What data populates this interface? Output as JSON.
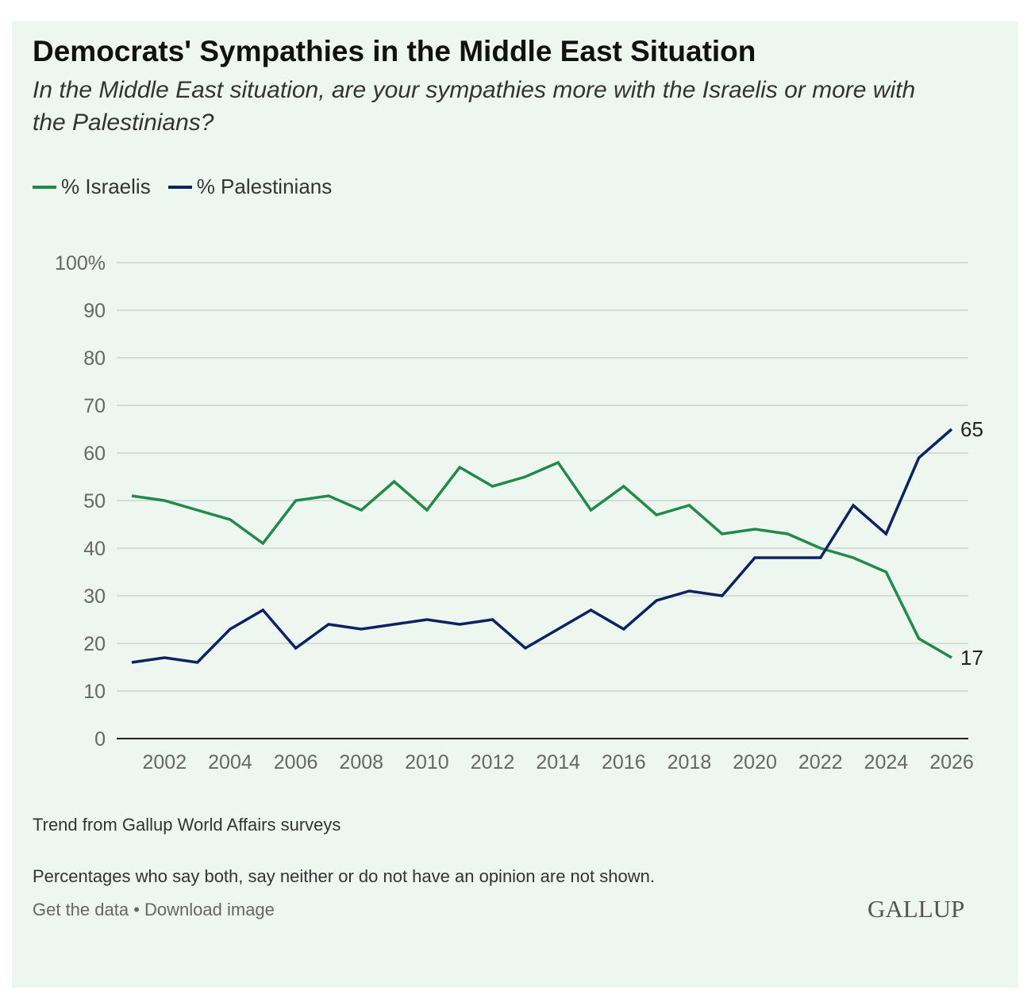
{
  "header": {
    "title": "Democrats' Sympathies in the Middle East Situation",
    "subtitle": "In the Middle East situation, are your sympathies more with the Israelis or more with the Palestinians?"
  },
  "notes": {
    "source": "Trend from Gallup World Affairs surveys",
    "caveat": "Percentages who say both, say neither or do not have an opinion are not shown."
  },
  "footer": {
    "get_data": "Get the data",
    "separator": " • ",
    "download": "Download image",
    "logo": "GALLUP"
  },
  "chart_data": {
    "type": "line",
    "title": "Democrats' Sympathies in the Middle East Situation",
    "xlabel": "",
    "ylabel": "",
    "ylim": [
      0,
      100
    ],
    "xlim": [
      2001,
      2026
    ],
    "yticks": [
      "0",
      "10",
      "20",
      "30",
      "40",
      "50",
      "60",
      "70",
      "80",
      "90",
      "100%"
    ],
    "xticks": [
      "2002",
      "2004",
      "2006",
      "2008",
      "2010",
      "2012",
      "2014",
      "2016",
      "2018",
      "2020",
      "2022",
      "2024",
      "2026"
    ],
    "grid": true,
    "legend_placement": "top-left",
    "x": [
      2001,
      2002,
      2003,
      2004,
      2005,
      2006,
      2007,
      2008,
      2009,
      2010,
      2011,
      2012,
      2013,
      2014,
      2015,
      2016,
      2017,
      2018,
      2019,
      2020,
      2021,
      2022,
      2023,
      2024,
      2025,
      2026
    ],
    "series": [
      {
        "name": "% Israelis",
        "color": "#218a4a",
        "end_label": "17",
        "values": [
          51,
          50,
          48,
          46,
          41,
          50,
          51,
          48,
          54,
          48,
          57,
          53,
          55,
          58,
          48,
          53,
          47,
          49,
          43,
          44,
          43,
          40,
          38,
          35,
          21,
          17
        ]
      },
      {
        "name": "% Palestinians",
        "color": "#0d2360",
        "end_label": "65",
        "values": [
          16,
          17,
          16,
          23,
          27,
          19,
          24,
          23,
          24,
          25,
          24,
          25,
          19,
          23,
          27,
          23,
          29,
          31,
          30,
          38,
          38,
          38,
          49,
          43,
          59,
          65
        ]
      }
    ]
  }
}
